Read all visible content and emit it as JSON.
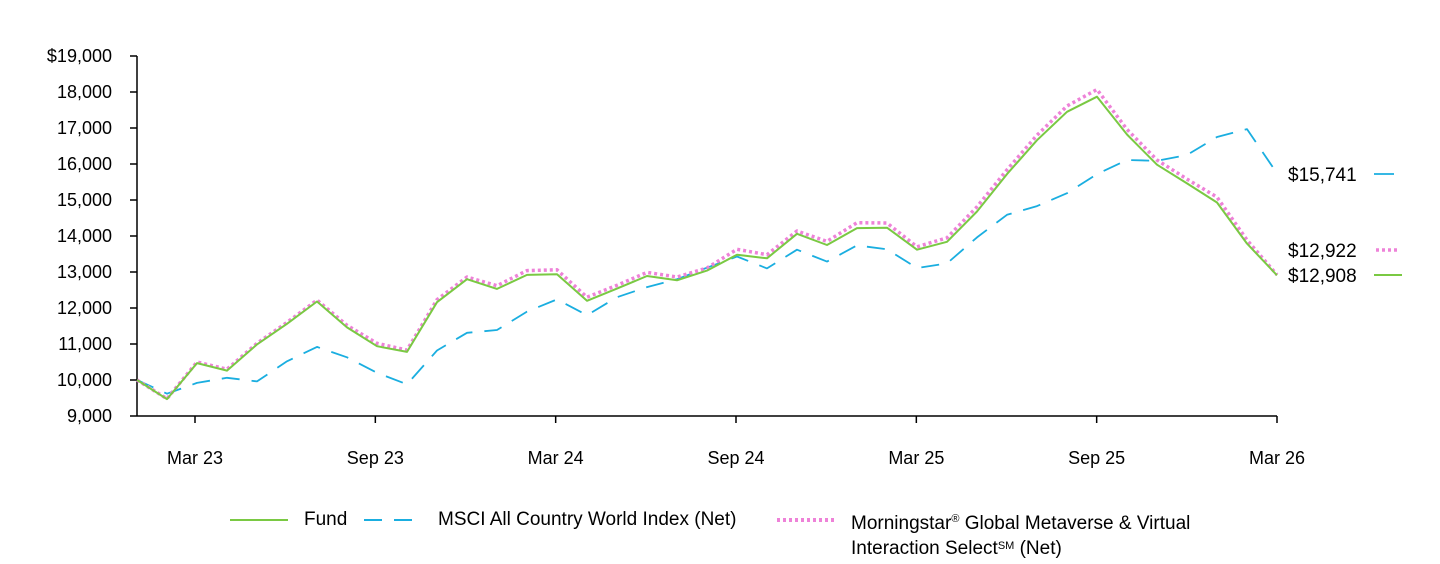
{
  "chart_data": {
    "type": "line",
    "x_ticks": [
      "Mar 23",
      "Sep 23",
      "Mar 24",
      "Sep 24",
      "Mar 25",
      "Sep 25",
      "Mar 26"
    ],
    "y_ticks": [
      "$19,000",
      "18,000",
      "17,000",
      "16,000",
      "15,000",
      "14,000",
      "13,000",
      "12,000",
      "11,000",
      "10,000",
      "9,000"
    ],
    "ylim": [
      9000,
      19000
    ],
    "series": [
      {
        "name": "Fund",
        "style": "solid",
        "color": "#7ac943",
        "end_label": "$12,908",
        "values": [
          10000,
          9470,
          10470,
          10260,
          10990,
          11560,
          12180,
          11460,
          10940,
          10780,
          12160,
          12800,
          12530,
          12920,
          12940,
          12200,
          12540,
          12890,
          12770,
          13040,
          13480,
          13380,
          14060,
          13750,
          14220,
          14230,
          13620,
          13840,
          14680,
          15720,
          16660,
          17450,
          17870,
          16820,
          15980,
          15460,
          14930,
          13790,
          12908
        ]
      },
      {
        "name": "MSCI All Country World Index (Net)",
        "style": "dashed",
        "color": "#1aaee0",
        "end_label": "$15,741",
        "values": [
          10000,
          9620,
          9920,
          10060,
          9960,
          10520,
          10920,
          10630,
          10200,
          9880,
          10820,
          11310,
          11390,
          11900,
          12240,
          11800,
          12300,
          12580,
          12800,
          13120,
          13430,
          13100,
          13620,
          13290,
          13740,
          13630,
          13110,
          13240,
          13960,
          14590,
          14830,
          15190,
          15720,
          16110,
          16090,
          16250,
          16750,
          16970,
          15741
        ]
      },
      {
        "name": "Morningstar® Global Metaverse & Virtual Interaction Select℠ (Net)",
        "style": "dotted",
        "color": "#ee82d8",
        "end_label": "$12,922",
        "values": [
          10000,
          9480,
          10500,
          10300,
          11020,
          11600,
          12220,
          11520,
          11020,
          10830,
          12230,
          12860,
          12620,
          13040,
          13060,
          12300,
          12630,
          12990,
          12860,
          13110,
          13630,
          13480,
          14140,
          13850,
          14370,
          14360,
          13700,
          13950,
          14810,
          15840,
          16800,
          17610,
          18070,
          16960,
          16110,
          15580,
          15080,
          13890,
          12922
        ]
      }
    ],
    "grid": false,
    "legend_position": "bottom"
  },
  "legend": {
    "fund": "Fund",
    "msci": "MSCI All Country World Index (Net)",
    "ms_pre": "Morningstar",
    "ms_reg": "®",
    "ms_mid": " Global Metaverse & Virtual",
    "ms_line2": "Interaction Select",
    "ms_sm": "SM",
    "ms_net": " (Net)"
  }
}
